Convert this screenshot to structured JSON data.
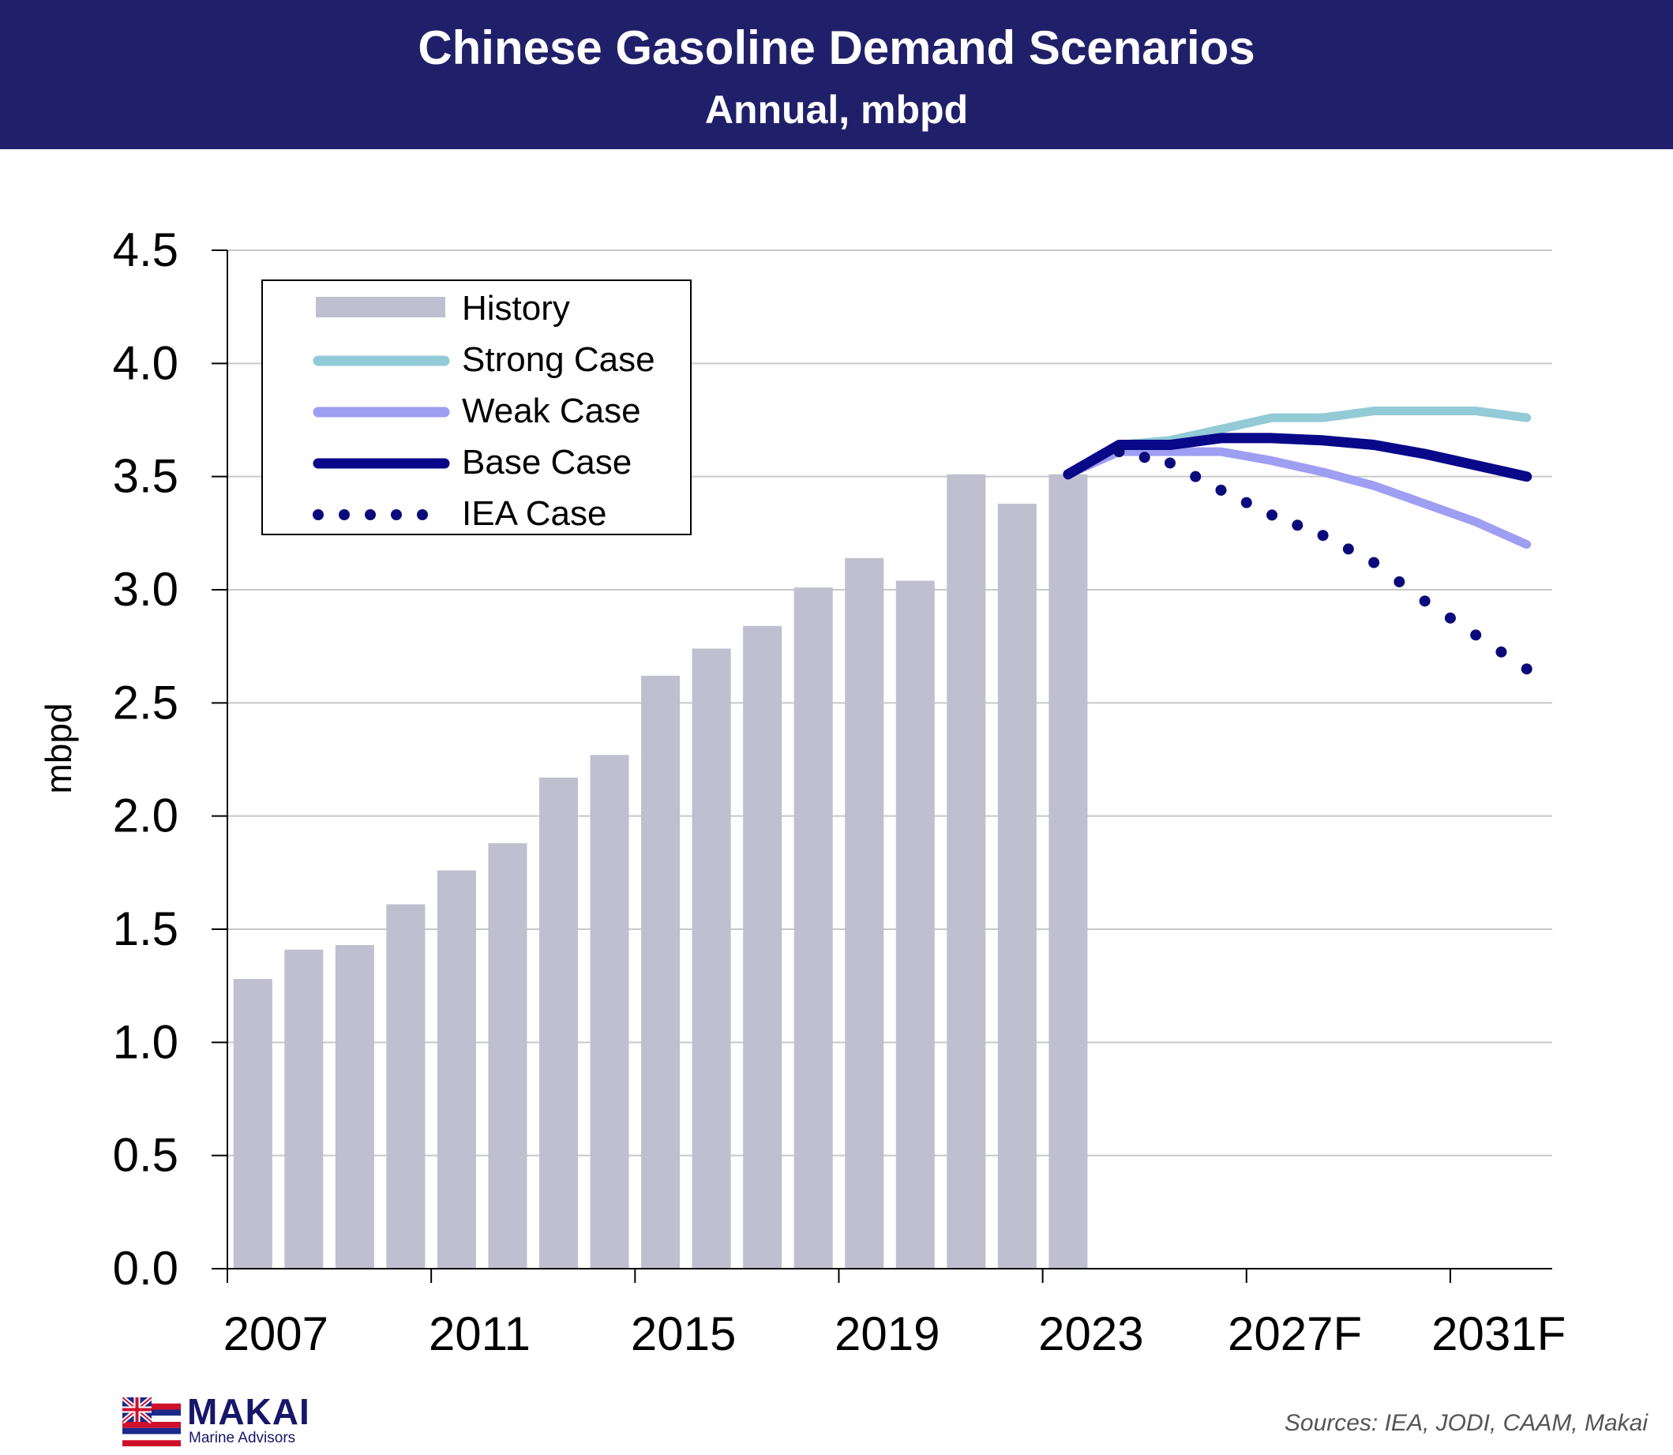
{
  "header": {
    "title": "Chinese Gasoline Demand Scenarios",
    "subtitle": "Annual, mbpd"
  },
  "chart_data": {
    "type": "bar",
    "title": "Chinese Gasoline Demand Scenarios",
    "subtitle": "Annual, mbpd",
    "ylabel": "mbpd",
    "xlabel": "",
    "ylim": [
      0,
      4.5
    ],
    "yticks": [
      "0.0",
      "0.5",
      "1.0",
      "1.5",
      "2.0",
      "2.5",
      "3.0",
      "3.5",
      "4.0",
      "4.5"
    ],
    "grid": true,
    "legend_placement": "top-left",
    "years": [
      2007,
      2008,
      2009,
      2010,
      2011,
      2012,
      2013,
      2014,
      2015,
      2016,
      2017,
      2018,
      2019,
      2020,
      2021,
      2022,
      2023,
      2024,
      2025,
      2026,
      2027,
      2028,
      2029,
      2030,
      2031,
      2032
    ],
    "x_tick_labels": [
      {
        "year": 2007,
        "label": "2007"
      },
      {
        "year": 2011,
        "label": "2011"
      },
      {
        "year": 2015,
        "label": "2015"
      },
      {
        "year": 2019,
        "label": "2019"
      },
      {
        "year": 2023,
        "label": "2023"
      },
      {
        "year": 2027,
        "label": "2027F"
      },
      {
        "year": 2031,
        "label": "2031F"
      }
    ],
    "history": {
      "name": "History",
      "color": "#c0bfcf",
      "years": [
        2007,
        2008,
        2009,
        2010,
        2011,
        2012,
        2013,
        2014,
        2015,
        2016,
        2017,
        2018,
        2019,
        2020,
        2021,
        2022,
        2023
      ],
      "values": [
        1.28,
        1.41,
        1.43,
        1.61,
        1.76,
        1.88,
        2.17,
        2.27,
        2.62,
        2.74,
        2.84,
        3.01,
        3.14,
        3.04,
        3.51,
        3.38,
        3.51
      ]
    },
    "series": [
      {
        "name": "Strong Case",
        "style": "solid",
        "color": "#92cad6",
        "years": [
          2023,
          2024,
          2025,
          2026,
          2027,
          2028,
          2029,
          2030,
          2031,
          2032
        ],
        "values": [
          3.51,
          3.64,
          3.66,
          3.71,
          3.76,
          3.76,
          3.79,
          3.79,
          3.79,
          3.76
        ]
      },
      {
        "name": "Weak Case",
        "style": "solid",
        "color": "#9e9ef2",
        "years": [
          2023,
          2024,
          2025,
          2026,
          2027,
          2028,
          2029,
          2030,
          2031,
          2032
        ],
        "values": [
          3.51,
          3.61,
          3.61,
          3.61,
          3.57,
          3.52,
          3.46,
          3.38,
          3.3,
          3.2
        ]
      },
      {
        "name": "Base Case",
        "style": "solid",
        "color": "#080889",
        "years": [
          2023,
          2024,
          2025,
          2026,
          2027,
          2028,
          2029,
          2030,
          2031,
          2032
        ],
        "values": [
          3.51,
          3.64,
          3.64,
          3.67,
          3.67,
          3.66,
          3.64,
          3.6,
          3.55,
          3.5
        ]
      },
      {
        "name": "IEA Case",
        "style": "dotted",
        "color": "#0a0a7a",
        "years": [
          2024,
          2025,
          2026,
          2027,
          2028,
          2029,
          2030,
          2031,
          2032
        ],
        "values": [
          3.61,
          3.56,
          3.44,
          3.33,
          3.24,
          3.12,
          2.95,
          2.8,
          2.65
        ]
      }
    ]
  },
  "logo": {
    "name": "MAKAI",
    "tagline": "Marine Advisors"
  },
  "footer": {
    "sources": "Sources: IEA, JODI, CAAM, Makai"
  }
}
